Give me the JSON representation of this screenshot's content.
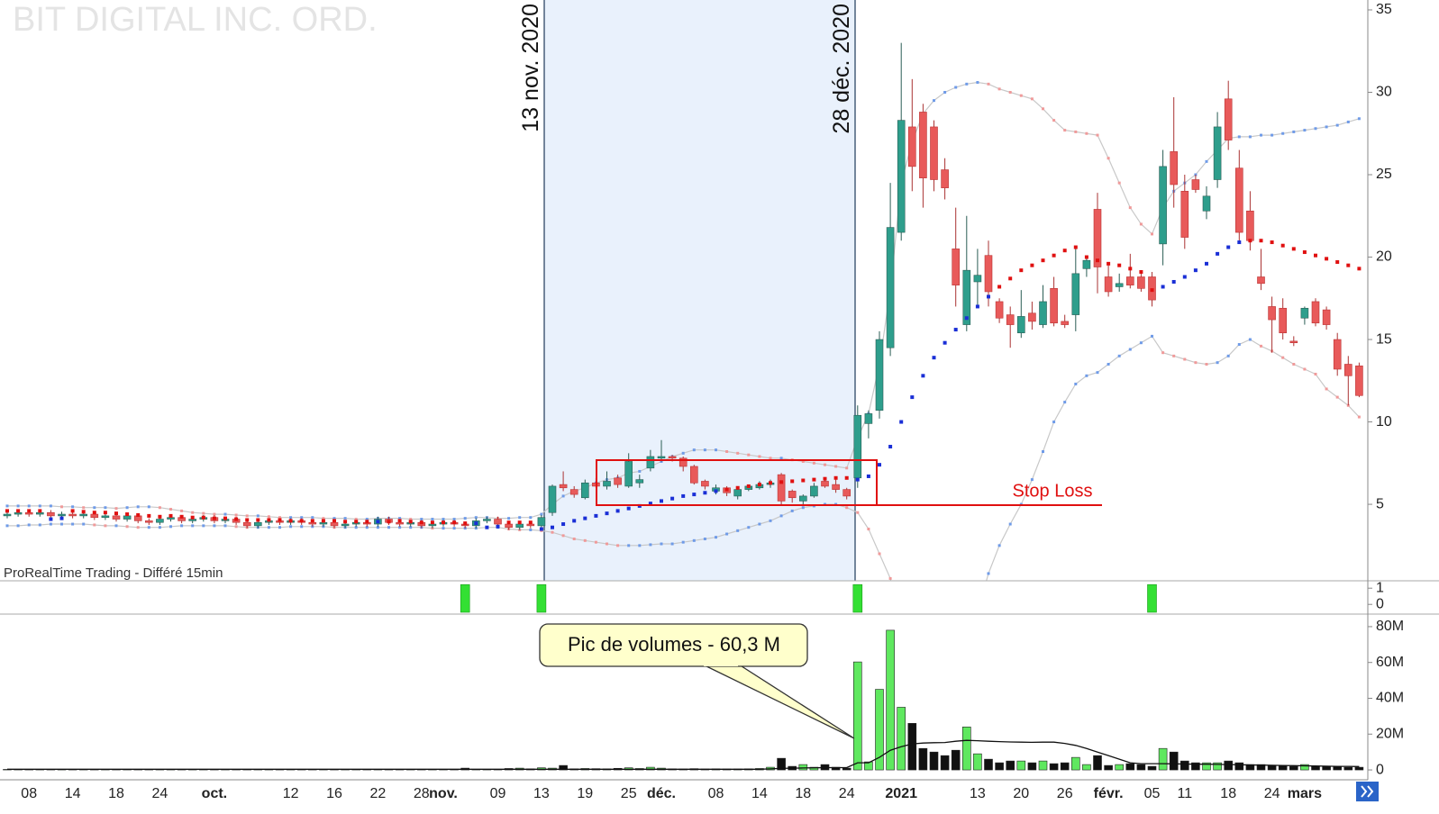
{
  "chart_data": [
    {
      "type": "candlestick",
      "title": "BIT DIGITAL INC. ORD.",
      "source": "ProRealTime Trading - Différé 15min",
      "annotations": [
        "13 nov. 2020",
        "28 déc. 2020",
        "Stop Loss"
      ],
      "ylim": [
        0.36,
        35.6
      ],
      "yticks": [
        5,
        10,
        15,
        20,
        25,
        30,
        35
      ],
      "up_color": "#2e9e8c",
      "down_color": "#e85a5a",
      "open": [
        4.3,
        4.4,
        4.5,
        4.4,
        4.5,
        4.3,
        4.4,
        4.3,
        4.4,
        4.2,
        4.3,
        4.1,
        4.3,
        4.0,
        3.9,
        4.1,
        4.2,
        4.0,
        4.1,
        4.2,
        4.0,
        4.1,
        3.9,
        3.7,
        3.9,
        4.0,
        3.9,
        4.0,
        3.9,
        3.8,
        3.9,
        3.7,
        3.8,
        3.9,
        3.8,
        4.1,
        3.9,
        3.8,
        3.9,
        3.7,
        3.8,
        3.9,
        3.8,
        3.7,
        4.0,
        4.1,
        3.8,
        3.6,
        3.8,
        3.7,
        4.5,
        6.2,
        5.9,
        5.4,
        6.3,
        6.1,
        6.6,
        6.1,
        6.3,
        7.2,
        7.8,
        7.9,
        7.8,
        7.3,
        6.4,
        5.8,
        6.0,
        5.5,
        5.9,
        6.0,
        6.2,
        6.8,
        5.8,
        5.2,
        5.5,
        6.4,
        6.2,
        5.9,
        6.6,
        9.9,
        10.7,
        14.5,
        21.5,
        27.9,
        28.8,
        27.9,
        25.3,
        20.5,
        15.9,
        18.5,
        20.1,
        17.3,
        16.5,
        15.4,
        16.6,
        15.9,
        18.1,
        16.1,
        16.5,
        19.3,
        22.9,
        18.8,
        18.2,
        18.8,
        18.8,
        18.8,
        20.8,
        26.4,
        24.0,
        24.7,
        22.8,
        24.7,
        29.6,
        25.4,
        22.8,
        18.8,
        17.0,
        16.9,
        14.9,
        16.3,
        17.3,
        16.8,
        15.0,
        13.5,
        13.4
      ],
      "high": [
        4.55,
        4.65,
        4.65,
        4.65,
        4.65,
        4.55,
        4.55,
        4.55,
        4.55,
        4.45,
        4.45,
        4.45,
        4.45,
        4.15,
        4.25,
        4.35,
        4.35,
        4.25,
        4.35,
        4.35,
        4.25,
        4.25,
        4.05,
        4.05,
        4.15,
        4.15,
        4.15,
        4.15,
        4.05,
        4.05,
        4.05,
        3.95,
        4.05,
        4.05,
        4.25,
        4.25,
        4.05,
        4.05,
        4.05,
        3.95,
        4.05,
        4.05,
        3.95,
        4.15,
        4.25,
        4.25,
        3.95,
        3.95,
        3.95,
        4.35,
        6.2,
        7.0,
        6.1,
        6.5,
        6.6,
        7.0,
        6.8,
        8.1,
        6.8,
        8.3,
        8.9,
        8.0,
        7.9,
        7.4,
        6.5,
        6.2,
        6.1,
        6.0,
        6.2,
        6.4,
        6.5,
        6.9,
        5.9,
        5.6,
        6.3,
        6.6,
        6.5,
        6.0,
        11.0,
        10.7,
        15.5,
        24.5,
        33.0,
        30.8,
        29.3,
        28.3,
        26.0,
        23.0,
        22.5,
        20.5,
        21.0,
        17.5,
        17.0,
        18.0,
        17.3,
        18.3,
        18.8,
        16.5,
        20.5,
        20.1,
        23.9,
        19.5,
        19.0,
        20.2,
        19.2,
        19.1,
        26.5,
        29.7,
        25.0,
        25.0,
        24.3,
        28.8,
        30.7,
        26.5,
        24.0,
        20.5,
        17.6,
        17.5,
        15.2,
        17.0,
        17.5,
        17.0,
        15.4,
        14.0,
        13.6
      ],
      "low": [
        4.15,
        4.25,
        4.25,
        4.25,
        4.15,
        4.15,
        4.15,
        4.15,
        4.05,
        4.05,
        3.95,
        3.95,
        3.85,
        3.75,
        3.75,
        3.95,
        3.85,
        3.85,
        3.95,
        3.85,
        3.85,
        3.75,
        3.55,
        3.55,
        3.75,
        3.75,
        3.75,
        3.75,
        3.65,
        3.65,
        3.55,
        3.55,
        3.65,
        3.65,
        3.65,
        3.75,
        3.65,
        3.65,
        3.55,
        3.55,
        3.65,
        3.65,
        3.55,
        3.55,
        3.85,
        3.65,
        3.45,
        3.45,
        3.55,
        3.55,
        4.3,
        5.8,
        5.4,
        5.3,
        6.0,
        5.9,
        6.0,
        6.0,
        6.0,
        7.0,
        7.6,
        7.6,
        7.0,
        6.2,
        5.9,
        5.6,
        5.5,
        5.3,
        5.8,
        5.9,
        6.0,
        4.9,
        5.1,
        5.0,
        5.4,
        6.0,
        5.7,
        5.3,
        6.0,
        9.0,
        10.2,
        14.0,
        21.0,
        24.0,
        23.0,
        24.0,
        23.5,
        17.0,
        15.5,
        17.0,
        17.0,
        16.0,
        14.5,
        15.1,
        15.6,
        15.7,
        15.8,
        15.7,
        15.5,
        18.8,
        17.8,
        17.6,
        17.9,
        18.1,
        17.9,
        17.0,
        19.5,
        23.0,
        20.5,
        23.9,
        22.3,
        24.2,
        26.5,
        20.8,
        20.4,
        18.0,
        14.2,
        15.0,
        14.6,
        15.9,
        15.8,
        15.6,
        12.8,
        11.0,
        11.5
      ],
      "close": [
        4.4,
        4.5,
        4.4,
        4.5,
        4.3,
        4.4,
        4.3,
        4.4,
        4.2,
        4.3,
        4.1,
        4.3,
        4.0,
        3.9,
        4.1,
        4.2,
        4.0,
        4.1,
        4.2,
        4.0,
        4.1,
        3.9,
        3.7,
        3.9,
        4.0,
        3.9,
        4.0,
        3.9,
        3.8,
        3.9,
        3.7,
        3.8,
        3.9,
        3.8,
        4.1,
        3.9,
        3.8,
        3.9,
        3.7,
        3.8,
        3.9,
        3.8,
        3.7,
        4.0,
        4.1,
        3.8,
        3.6,
        3.8,
        3.7,
        4.2,
        6.1,
        6.0,
        5.6,
        6.3,
        6.1,
        6.4,
        6.2,
        7.6,
        6.5,
        7.9,
        7.9,
        7.8,
        7.3,
        6.3,
        6.1,
        6.0,
        5.7,
        5.9,
        6.1,
        6.2,
        6.3,
        5.2,
        5.4,
        5.5,
        6.1,
        6.1,
        5.9,
        5.5,
        10.4,
        10.5,
        15.0,
        21.8,
        28.3,
        25.5,
        24.8,
        24.7,
        24.2,
        18.3,
        19.2,
        18.9,
        17.9,
        16.3,
        15.9,
        16.4,
        16.1,
        17.3,
        16.0,
        15.9,
        19.0,
        19.8,
        19.4,
        17.9,
        18.4,
        18.3,
        18.1,
        17.4,
        25.5,
        24.4,
        21.2,
        24.1,
        23.7,
        27.9,
        27.1,
        21.5,
        21.0,
        18.4,
        16.2,
        15.4,
        14.8,
        16.9,
        16.0,
        15.9,
        13.2,
        12.8,
        11.6
      ],
      "bollinger_upper": [
        4.9,
        4.9,
        4.9,
        4.9,
        4.9,
        4.85,
        4.85,
        4.8,
        4.8,
        4.8,
        4.75,
        4.8,
        4.85,
        4.85,
        4.8,
        4.7,
        4.6,
        4.5,
        4.45,
        4.4,
        4.4,
        4.35,
        4.3,
        4.3,
        4.25,
        4.2,
        4.2,
        4.2,
        4.2,
        4.15,
        4.15,
        4.15,
        4.1,
        4.1,
        4.15,
        4.15,
        4.15,
        4.1,
        4.1,
        4.1,
        4.1,
        4.1,
        4.15,
        4.2,
        4.2,
        4.15,
        4.15,
        4.2,
        4.2,
        4.4,
        5.0,
        5.5,
        5.8,
        6.0,
        6.3,
        6.5,
        6.6,
        6.9,
        7.0,
        7.3,
        7.6,
        7.9,
        8.1,
        8.3,
        8.3,
        8.3,
        8.2,
        8.1,
        8.0,
        7.9,
        7.8,
        7.8,
        7.7,
        7.6,
        7.5,
        7.4,
        7.3,
        7.2,
        9.0,
        10.5,
        13.5,
        18,
        24.5,
        27,
        28.7,
        29.5,
        30.0,
        30.3,
        30.5,
        30.6,
        30.5,
        30.2,
        30.0,
        29.8,
        29.6,
        29.0,
        28.3,
        27.7,
        27.6,
        27.5,
        27.4,
        26.0,
        24.5,
        23.0,
        22.0,
        21.4,
        23.0,
        24.0,
        24.5,
        25.0,
        25.8,
        26.5,
        27.2,
        27.3,
        27.3,
        27.4,
        27.4,
        27.5,
        27.6,
        27.7,
        27.8,
        27.9,
        28.0,
        28.2,
        28.4
      ],
      "bollinger_lower": [
        3.7,
        3.7,
        3.75,
        3.75,
        3.8,
        3.8,
        3.8,
        3.8,
        3.75,
        3.7,
        3.7,
        3.65,
        3.6,
        3.6,
        3.6,
        3.65,
        3.7,
        3.7,
        3.7,
        3.7,
        3.7,
        3.65,
        3.6,
        3.6,
        3.6,
        3.6,
        3.65,
        3.65,
        3.65,
        3.65,
        3.6,
        3.6,
        3.6,
        3.6,
        3.6,
        3.6,
        3.6,
        3.6,
        3.6,
        3.55,
        3.55,
        3.55,
        3.55,
        3.55,
        3.6,
        3.6,
        3.5,
        3.45,
        3.45,
        3.4,
        3.3,
        3.1,
        2.9,
        2.8,
        2.7,
        2.6,
        2.5,
        2.5,
        2.5,
        2.55,
        2.6,
        2.6,
        2.7,
        2.8,
        2.9,
        3.0,
        3.2,
        3.4,
        3.6,
        3.8,
        4.0,
        4.3,
        4.6,
        4.8,
        4.9,
        5.0,
        5.0,
        4.8,
        4.5,
        3.5,
        2.0,
        0.5,
        -3,
        -6,
        -8,
        -9,
        -9,
        -7,
        -4,
        -1.5,
        0.8,
        2.5,
        3.8,
        5.0,
        6.5,
        8.2,
        10.0,
        11.2,
        12.3,
        12.8,
        13.0,
        13.5,
        14.0,
        14.4,
        14.8,
        15.2,
        14.2,
        14.0,
        13.8,
        13.6,
        13.5,
        13.6,
        14.0,
        14.7,
        15.0,
        14.6,
        14.3,
        13.9,
        13.5,
        13.2,
        12.9,
        12.0,
        11.5,
        11.0,
        10.3
      ],
      "sar": [
        4.6,
        4.6,
        4.6,
        4.6,
        4.1,
        4.15,
        4.6,
        4.55,
        4.5,
        4.5,
        4.45,
        4.4,
        4.35,
        4.3,
        4.25,
        4.3,
        4.25,
        4.2,
        4.2,
        4.15,
        4.15,
        4.1,
        4.05,
        4.05,
        4.05,
        4.05,
        4.0,
        4.0,
        4.0,
        4.0,
        4.0,
        3.95,
        3.95,
        3.95,
        3.95,
        3.95,
        4.0,
        3.95,
        3.9,
        3.9,
        3.9,
        3.9,
        3.85,
        3.85,
        3.6,
        3.65,
        3.9,
        3.9,
        3.9,
        3.5,
        3.6,
        3.8,
        4.0,
        4.15,
        4.3,
        4.45,
        4.6,
        4.75,
        4.9,
        5.05,
        5.2,
        5.35,
        5.5,
        5.6,
        5.7,
        5.8,
        5.9,
        6.0,
        6.1,
        6.2,
        6.3,
        6.35,
        6.4,
        6.45,
        6.5,
        6.55,
        6.6,
        6.6,
        6.5,
        6.7,
        7.4,
        8.5,
        10.0,
        11.5,
        12.8,
        13.9,
        14.8,
        15.6,
        16.3,
        17.0,
        17.6,
        18.2,
        18.7,
        19.2,
        19.5,
        19.8,
        20.1,
        20.4,
        20.6,
        20.0,
        19.8,
        19.6,
        19.5,
        19.3,
        19.1,
        18.0,
        18.2,
        18.5,
        18.8,
        19.2,
        19.6,
        20.2,
        20.6,
        20.9,
        21.0,
        21.0,
        20.9,
        20.7,
        20.5,
        20.3,
        20.1,
        19.9,
        19.7,
        19.5,
        19.3
      ],
      "band_up_color": "#6f9be8",
      "band_down_color": "#f09a9a",
      "sar_up_color": "#1a2fd6",
      "sar_down_color": "#e01010"
    },
    {
      "type": "bar",
      "ylim": [
        -0.6,
        1.4
      ],
      "yticks": [
        0,
        1
      ],
      "color": "#33e033",
      "values": [
        0,
        0,
        0,
        0,
        0,
        0,
        0,
        0,
        0,
        0,
        0,
        0,
        0,
        0,
        0,
        0,
        0,
        0,
        0,
        0,
        0,
        0,
        0,
        0,
        0,
        0,
        0,
        0,
        0,
        0,
        0,
        0,
        0,
        0,
        0,
        0,
        0,
        0,
        0,
        0,
        0,
        0,
        1,
        0,
        0,
        0,
        0,
        0,
        0,
        1,
        0,
        0,
        0,
        0,
        0,
        0,
        0,
        0,
        0,
        0,
        0,
        0,
        0,
        0,
        0,
        0,
        0,
        0,
        0,
        0,
        0,
        0,
        0,
        0,
        0,
        0,
        0,
        0,
        1,
        0,
        0,
        0,
        0,
        0,
        0,
        0,
        0,
        0,
        0,
        0,
        0,
        0,
        0,
        0,
        0,
        0,
        0,
        0,
        0,
        0,
        0,
        0,
        0,
        0,
        0,
        1,
        0,
        0,
        0,
        0,
        0,
        0,
        0,
        0,
        0,
        0,
        0,
        0,
        0,
        0,
        0,
        0,
        0,
        0,
        0
      ]
    },
    {
      "type": "bar",
      "ylim": [
        -5.5,
        87
      ],
      "yticks": [
        0,
        {
          "value": 20,
          "label": "20M"
        },
        {
          "value": 40,
          "label": "40M"
        },
        {
          "value": 60,
          "label": "60M"
        },
        {
          "value": 80,
          "label": "80M"
        }
      ],
      "annotation": "Pic de volumes - 60,3 M",
      "up_color": "#5fe85f",
      "down_color": "#111111",
      "categories": [
        null,
        null,
        "08",
        null,
        null,
        null,
        "14",
        null,
        null,
        null,
        "18",
        null,
        null,
        null,
        "24",
        null,
        null,
        null,
        null,
        "oct.",
        null,
        null,
        null,
        null,
        null,
        null,
        "12",
        null,
        null,
        null,
        "16",
        null,
        null,
        null,
        "22",
        null,
        null,
        null,
        "28",
        null,
        "nov.",
        null,
        null,
        null,
        null,
        "09",
        null,
        null,
        null,
        "13",
        null,
        null,
        null,
        "19",
        null,
        null,
        null,
        "25",
        null,
        null,
        "déc.",
        null,
        null,
        null,
        null,
        "08",
        null,
        null,
        null,
        "14",
        null,
        null,
        null,
        "18",
        null,
        null,
        null,
        "24",
        null,
        null,
        null,
        null,
        "2021",
        null,
        null,
        null,
        null,
        null,
        null,
        "13",
        null,
        null,
        null,
        "20",
        null,
        null,
        null,
        "26",
        null,
        null,
        null,
        "févr.",
        null,
        null,
        null,
        "05",
        null,
        null,
        "11",
        null,
        null,
        null,
        "18",
        null,
        null,
        null,
        "24",
        null,
        null,
        "mars",
        null,
        null,
        null,
        null,
        null
      ],
      "values": [
        0.3,
        0.3,
        0.2,
        0.3,
        0.3,
        0.2,
        0.3,
        0.3,
        0.2,
        0.3,
        0.3,
        0.2,
        0.3,
        0.3,
        0.2,
        0.3,
        0.3,
        0.2,
        0.3,
        0.3,
        0.2,
        0.3,
        0.3,
        0.2,
        0.3,
        0.3,
        0.2,
        0.3,
        0.3,
        0.2,
        0.3,
        0.3,
        0.2,
        0.3,
        0.3,
        0.2,
        0.3,
        0.3,
        0.2,
        0.3,
        0.3,
        0.2,
        1.0,
        0.3,
        0.3,
        0.2,
        0.8,
        1.0,
        0.6,
        1.2,
        1.0,
        2.5,
        0.6,
        0.8,
        0.7,
        0.6,
        0.9,
        1.2,
        0.8,
        1.5,
        1.0,
        0.6,
        0.5,
        0.7,
        0.5,
        0.6,
        0.5,
        0.5,
        0.6,
        0.8,
        1.5,
        6.5,
        2.0,
        3.0,
        1.5,
        3.0,
        1.5,
        1.0,
        60.3,
        4.5,
        45,
        78,
        35,
        26,
        12,
        10,
        8,
        11,
        24,
        9,
        6,
        4,
        5,
        5,
        4,
        5,
        3.5,
        4,
        7,
        3,
        8,
        2.5,
        3,
        3.5,
        3,
        2,
        12,
        10,
        5,
        4,
        4,
        4,
        5,
        4,
        3,
        3,
        2.5,
        2.5,
        2,
        3,
        2,
        2,
        2,
        1.5,
        1.5
      ],
      "moving_average": [
        0.4,
        0.4,
        0.4,
        0.4,
        0.4,
        0.4,
        0.4,
        0.4,
        0.4,
        0.4,
        0.4,
        0.4,
        0.4,
        0.4,
        0.4,
        0.4,
        0.4,
        0.4,
        0.4,
        0.4,
        0.4,
        0.4,
        0.4,
        0.4,
        0.4,
        0.4,
        0.4,
        0.4,
        0.4,
        0.4,
        0.4,
        0.4,
        0.4,
        0.4,
        0.4,
        0.4,
        0.4,
        0.4,
        0.4,
        0.4,
        0.4,
        0.4,
        0.4,
        0.4,
        0.4,
        0.4,
        0.4,
        0.4,
        0.4,
        0.4,
        0.4,
        0.4,
        0.4,
        0.4,
        0.4,
        0.4,
        0.4,
        0.4,
        0.4,
        0.4,
        0.4,
        0.4,
        0.4,
        0.4,
        0.4,
        0.4,
        0.4,
        0.4,
        0.4,
        0.4,
        0.6,
        0.9,
        1.0,
        1.1,
        1.2,
        1.3,
        1.3,
        1.3,
        4,
        4,
        7,
        11,
        13,
        14.5,
        15,
        15.2,
        15.3,
        16,
        16.5,
        16.3,
        16,
        15.8,
        15.6,
        15.5,
        15.4,
        15.5,
        15.5,
        14.8,
        13.7,
        12,
        10,
        8,
        6,
        4,
        3.5,
        3.5,
        3.5,
        3.4,
        3.3,
        3.2,
        3.2,
        3.1,
        3.0,
        2.9,
        2.8,
        2.7,
        2.6,
        2.5,
        2.4,
        2.3,
        2.2,
        2.1,
        2.0,
        2.0,
        1.9
      ]
    }
  ]
}
